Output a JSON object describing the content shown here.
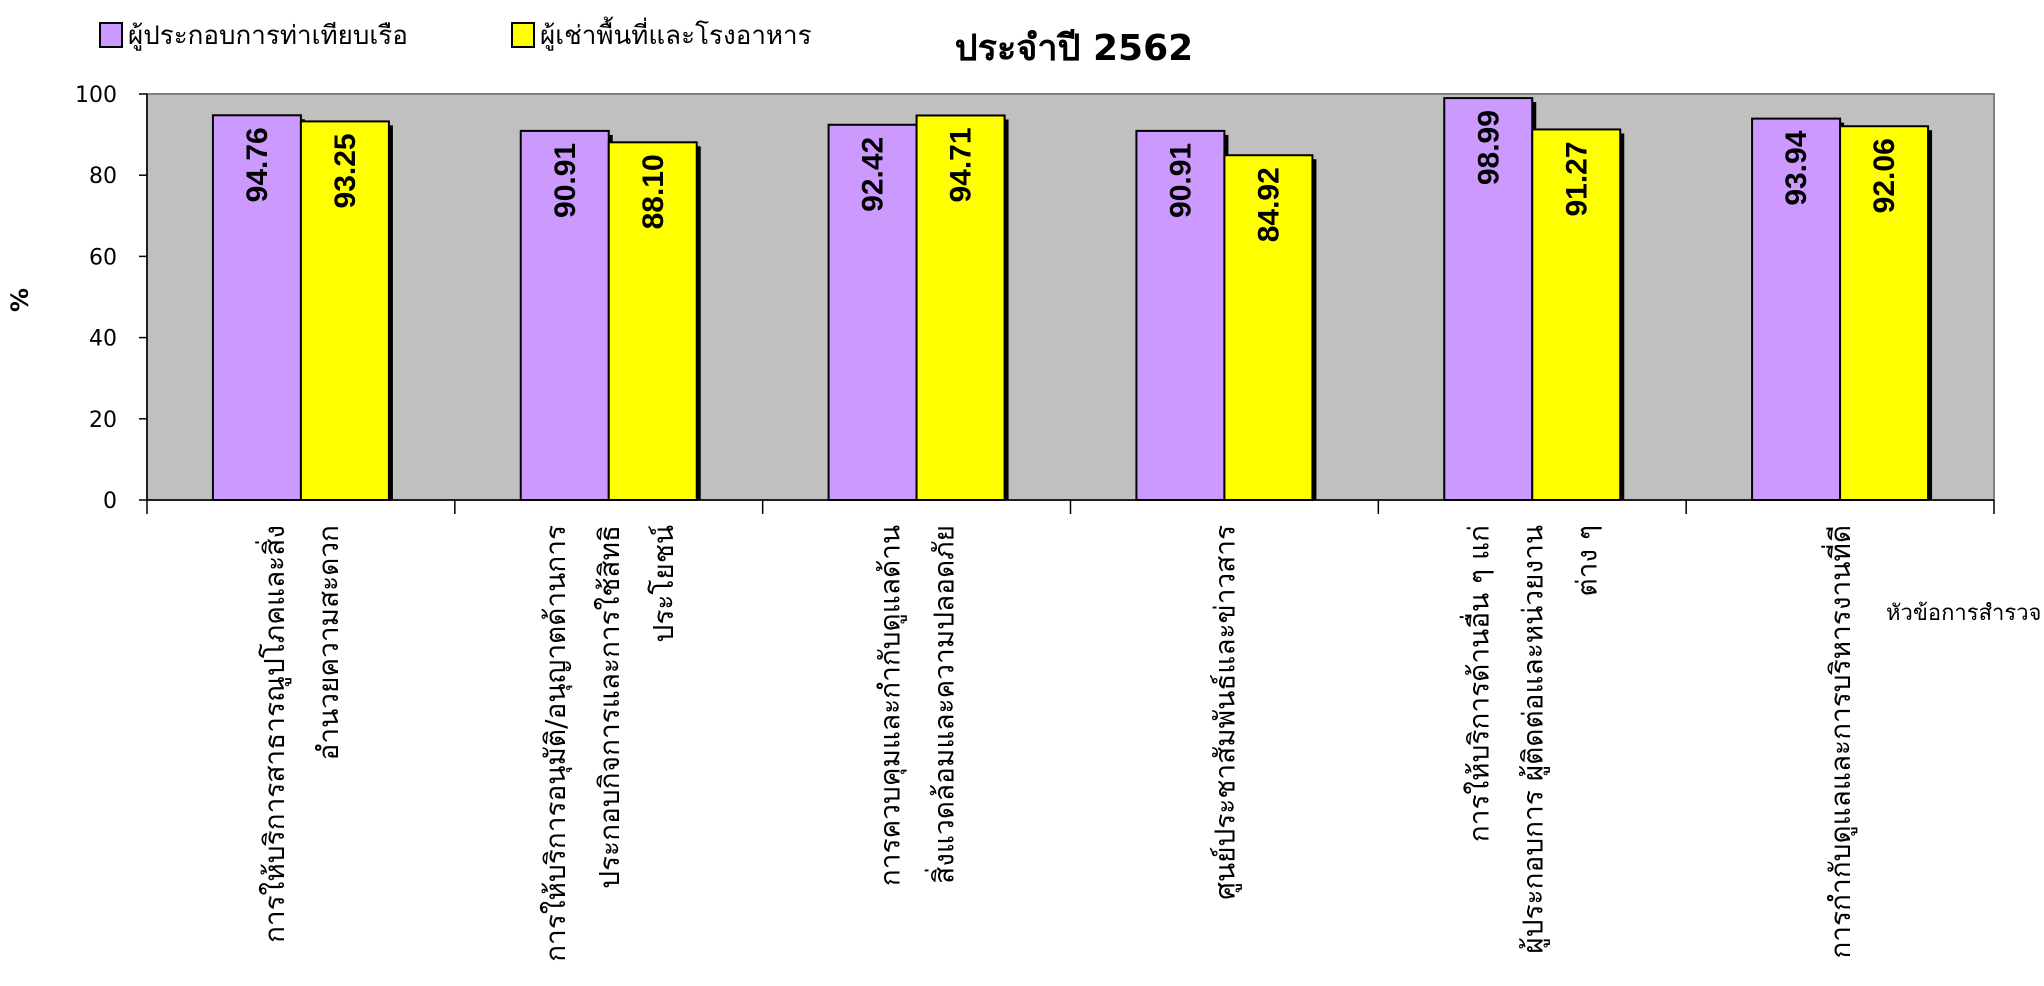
{
  "chart_data": {
    "type": "bar",
    "title": "ประจำปี 2562",
    "ylabel": "%",
    "xlabel": "หัวข้อการสำรวจ",
    "ylim": [
      0,
      100
    ],
    "yticks": [
      0,
      20,
      40,
      60,
      80,
      100
    ],
    "legend_position": "top-left",
    "background": "#c0c0c0",
    "categories": [
      [
        "การให้บริการสาธารณูปโภคและสิ่ง",
        "อำนวยความสะดวก"
      ],
      [
        "การให้บริการอนุมัติ/อนุญาตด้านการ",
        "ประกอบกิจการและการใช้สิทธิ",
        "ประโยชน์"
      ],
      [
        "การควบคุมและกำกับดูแลด้าน",
        "สิ่งแวดล้อมและความปลอดภัย"
      ],
      [
        "ศูนย์ประชาสัมพันธ์และข่าวสาร"
      ],
      [
        "การให้บริการด้านอื่น ๆ แก่",
        "ผู้ประกอบการ ผู้ติดต่อและหน่วยงาน",
        "ต่าง ๆ"
      ],
      [
        "การกำกับดูแลและการบริหารงานที่ดี"
      ]
    ],
    "series": [
      {
        "name": "ผู้ประกอบการท่าเทียบเรือ",
        "color": "#cc99ff",
        "values": [
          94.76,
          90.91,
          92.42,
          90.91,
          98.99,
          93.94
        ],
        "labels": [
          "94.76",
          "90.91",
          "92.42",
          "90.91",
          "98.99",
          "93.94"
        ]
      },
      {
        "name": "ผู้เช่าพื้นที่และโรงอาหาร",
        "color": "#ffff00",
        "values": [
          93.25,
          88.1,
          94.71,
          84.92,
          91.27,
          92.06
        ],
        "labels": [
          "93.25",
          "88.10",
          "94.71",
          "84.92",
          "91.27",
          "92.06"
        ]
      }
    ]
  }
}
